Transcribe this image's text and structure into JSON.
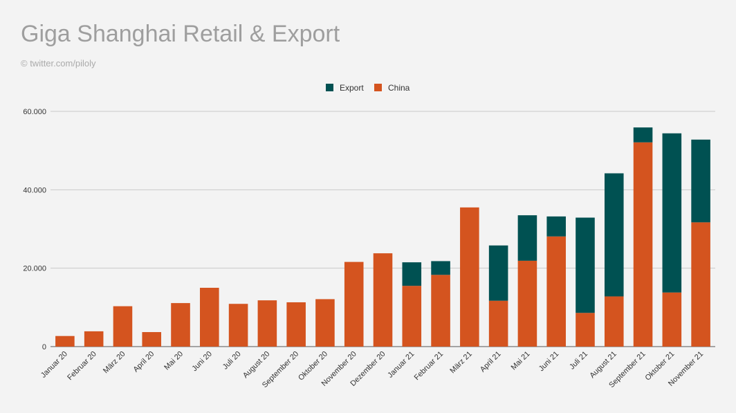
{
  "chart_data": {
    "type": "bar",
    "stacked": true,
    "title": "Giga Shanghai Retail & Export",
    "subtitle": "© twitter.com/piloly",
    "xlabel": "",
    "ylabel": "",
    "ylim": [
      0,
      60000
    ],
    "yticks": [
      0,
      20000,
      40000,
      60000
    ],
    "ytick_labels": [
      "0",
      "20.000",
      "40.000",
      "60.000"
    ],
    "grid": true,
    "legend_position": "top-center",
    "categories": [
      "Januar 20",
      "Februar 20",
      "März 20",
      "April 20",
      "Mai 20",
      "Juni 20",
      "Juli 20",
      "August 20",
      "September 20",
      "Oktober 20",
      "November 20",
      "Dezember 20",
      "Januar 21",
      "Februar 21",
      "März 21",
      "April 21",
      "Mai 21",
      "Juni 21",
      "Juli 21",
      "August 21",
      "September 21",
      "Oktober 21",
      "November 21"
    ],
    "series": [
      {
        "name": "China",
        "color": "#d4541f",
        "values": [
          2700,
          3900,
          10300,
          3700,
          11100,
          15000,
          10900,
          11800,
          11300,
          12100,
          21600,
          23800,
          15500,
          18300,
          35500,
          11700,
          21900,
          28100,
          8600,
          12800,
          52100,
          13800,
          31700
        ]
      },
      {
        "name": "Export",
        "color": "#005152",
        "values": [
          0,
          0,
          0,
          0,
          0,
          0,
          0,
          0,
          0,
          0,
          0,
          0,
          6000,
          3500,
          0,
          14100,
          11600,
          5100,
          24300,
          31400,
          3800,
          40600,
          21100
        ]
      }
    ],
    "legend": [
      {
        "name": "Export",
        "color": "#005152"
      },
      {
        "name": "China",
        "color": "#d4541f"
      }
    ]
  }
}
